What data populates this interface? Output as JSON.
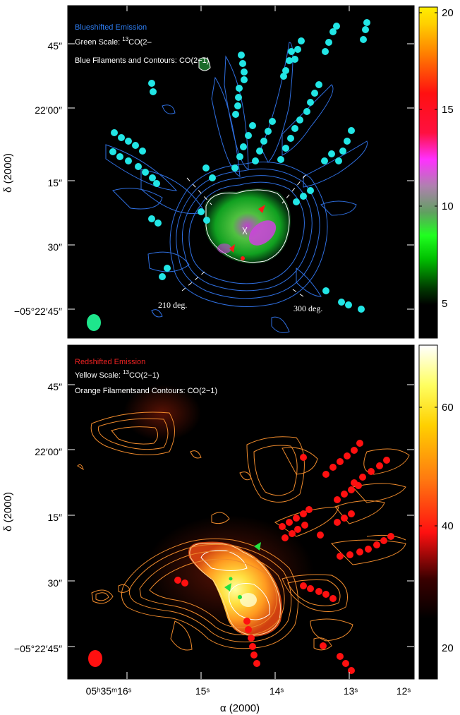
{
  "chart_data": [
    {
      "type": "heatmap",
      "panel": "top",
      "texts": {
        "line1": "Blueshifted Emission",
        "line2a": "Green Scale: ",
        "line2sup": "13",
        "line2b": "CO(2–",
        "line3": "Blue Filaments and Contours: CO(2−1)"
      },
      "annotations": [
        "210 deg.",
        "300 deg."
      ],
      "ylabel": "δ (2000)",
      "yticks": [
        "45″",
        "22′00″",
        "15″",
        "30″",
        "−05°22′45″"
      ],
      "colorbar": {
        "ticks": [
          "20",
          "15",
          "10",
          "5"
        ],
        "range": [
          3,
          20
        ]
      },
      "colors": {
        "contour": "#2f6fe0",
        "filament": "#22e6e6",
        "title": "#2d7cf0",
        "beam": "#1ee68c"
      }
    },
    {
      "type": "heatmap",
      "panel": "bottom",
      "texts": {
        "line1": "Redshifted Emission",
        "line2a": "Yellow Scale: ",
        "line2sup": "13",
        "line2b": "CO(2−1)",
        "line3": "Orange Filamentsand Contours: CO(2−1)"
      },
      "ylabel": "δ (2000)",
      "yticks": [
        "45″",
        "22′00″",
        "15″",
        "30″",
        "−05°22′45″"
      ],
      "xlabel": "α (2000)",
      "xticks": [
        "05ʰ35ᵐ16ˢ",
        "15ˢ",
        "14ˢ",
        "13ˢ",
        "12ˢ"
      ],
      "colorbar": {
        "ticks": [
          "60",
          "40",
          "20"
        ],
        "range": [
          15,
          70
        ]
      },
      "colors": {
        "contour": "#ee8a2c",
        "filament": "#ff1010",
        "title": "#ee2222",
        "beam": "#ff1010"
      }
    }
  ]
}
